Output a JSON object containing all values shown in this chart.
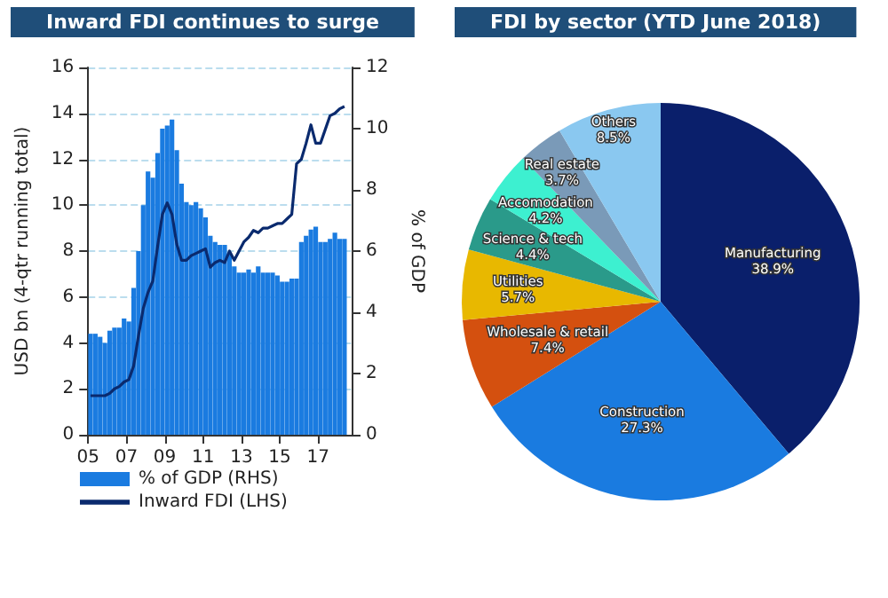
{
  "chart_data": [
    {
      "type": "bar",
      "title": "Inward FDI continues to surge",
      "ylabel": "USD bn (4-qtr running total)",
      "y2label": "% of GDP",
      "x": [
        2005.125,
        2005.375,
        2005.625,
        2005.875,
        2006.125,
        2006.375,
        2006.625,
        2006.875,
        2007.125,
        2007.375,
        2007.625,
        2007.875,
        2008.125,
        2008.375,
        2008.625,
        2008.875,
        2009.125,
        2009.375,
        2009.625,
        2009.875,
        2010.125,
        2010.375,
        2010.625,
        2010.875,
        2011.125,
        2011.375,
        2011.625,
        2011.875,
        2012.125,
        2012.375,
        2012.625,
        2012.875,
        2013.125,
        2013.375,
        2013.625,
        2013.875,
        2014.125,
        2014.375,
        2014.625,
        2014.875,
        2015.125,
        2015.375,
        2015.625,
        2015.875,
        2016.125,
        2016.375,
        2016.625,
        2016.875,
        2017.125,
        2017.375,
        2017.625,
        2017.875,
        2018.125,
        2018.375
      ],
      "series": [
        {
          "name": "% of GDP (RHS)",
          "type": "bar",
          "axis": "y2",
          "color": "#1a7be0",
          "values": [
            3.3,
            3.3,
            3.2,
            3.0,
            3.4,
            3.5,
            3.5,
            3.8,
            3.7,
            4.8,
            6.0,
            7.5,
            8.6,
            8.4,
            9.2,
            10.0,
            10.1,
            10.3,
            9.3,
            8.2,
            7.6,
            7.5,
            7.6,
            7.4,
            7.1,
            6.5,
            6.3,
            6.2,
            6.2,
            5.9,
            5.5,
            5.3,
            5.3,
            5.4,
            5.3,
            5.5,
            5.3,
            5.3,
            5.3,
            5.2,
            5.0,
            5.0,
            5.1,
            5.1,
            6.3,
            6.5,
            6.7,
            6.8,
            6.3,
            6.3,
            6.4,
            6.6,
            6.4,
            6.4
          ]
        },
        {
          "name": "Inward FDI (LHS)",
          "type": "line",
          "axis": "y",
          "color": "#0a2a6e",
          "values": [
            1.7,
            1.7,
            1.7,
            1.7,
            1.8,
            2.0,
            2.1,
            2.3,
            2.4,
            3.0,
            4.3,
            5.5,
            6.2,
            6.7,
            8.2,
            9.6,
            10.1,
            9.6,
            8.3,
            7.6,
            7.6,
            7.8,
            7.9,
            8.0,
            8.1,
            7.3,
            7.5,
            7.6,
            7.5,
            8.0,
            7.6,
            8.0,
            8.4,
            8.6,
            8.9,
            8.8,
            9.0,
            9.0,
            9.1,
            9.2,
            9.2,
            9.4,
            9.6,
            11.8,
            12.0,
            12.7,
            13.5,
            12.7,
            12.7,
            13.3,
            13.9,
            14.0,
            14.2,
            14.3
          ]
        }
      ],
      "xlim": [
        2005,
        2018.75
      ],
      "xticks": [
        {
          "value": 2005,
          "label": "05"
        },
        {
          "value": 2007,
          "label": "07"
        },
        {
          "value": 2009,
          "label": "09"
        },
        {
          "value": 2011,
          "label": "11"
        },
        {
          "value": 2013,
          "label": "13"
        },
        {
          "value": 2015,
          "label": "15"
        },
        {
          "value": 2017,
          "label": "17"
        }
      ],
      "ylim": [
        0,
        16
      ],
      "yticks": [
        0,
        2,
        4,
        6,
        8,
        10,
        12,
        14,
        16
      ],
      "y2lim": [
        0,
        12
      ],
      "y2ticks": [
        0,
        2,
        4,
        6,
        8,
        10,
        12
      ],
      "grid": "y",
      "legend": "bottom",
      "marker": "none"
    },
    {
      "type": "pie",
      "title": "FDI by sector (YTD June 2018)",
      "categories": [
        "Manufacturing",
        "Construction",
        "Wholesale & retail",
        "Utilities",
        "Science & tech",
        "Accomodation",
        "Real estate",
        "Others"
      ],
      "values": [
        38.9,
        27.3,
        7.4,
        5.7,
        4.4,
        4.2,
        3.7,
        8.5
      ],
      "value_labels": [
        "38.9%",
        "27.3%",
        "7.4%",
        "5.7%",
        "4.4%",
        "4.2%",
        "3.7%",
        "8.5%"
      ],
      "colors": [
        "#0a1f6b",
        "#1a7be0",
        "#d4500f",
        "#e8b800",
        "#2a9a8a",
        "#3df0d0",
        "#7a9ab8",
        "#8ac8f0"
      ],
      "legend": false
    }
  ]
}
